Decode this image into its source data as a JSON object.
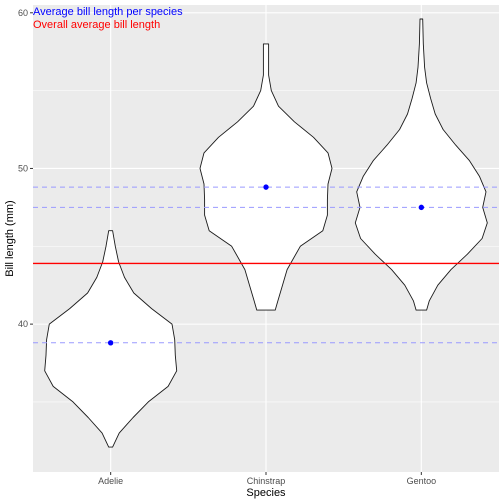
{
  "chart_data": {
    "type": "violin",
    "xlabel": "Species",
    "ylabel": "Bill length (mm)",
    "categories": [
      "Adelie",
      "Chinstrap",
      "Gentoo"
    ],
    "ylim": [
      30.5,
      60.5
    ],
    "y_ticks": [
      40,
      50,
      60
    ],
    "grid": true,
    "annotations": [
      {
        "text": "Average bill length per species",
        "color": "#0000ff"
      },
      {
        "text": "Overall average bill length",
        "color": "#ff0000"
      }
    ],
    "species_means": [
      {
        "species": "Adelie",
        "value": 38.8
      },
      {
        "species": "Chinstrap",
        "value": 48.8
      },
      {
        "species": "Gentoo",
        "value": 47.5
      }
    ],
    "overall_mean": 43.9,
    "violins": [
      {
        "species": "Adelie",
        "profile": [
          [
            32.1,
            0.03
          ],
          [
            33.0,
            0.13
          ],
          [
            34.0,
            0.34
          ],
          [
            35.0,
            0.57
          ],
          [
            36.0,
            0.87
          ],
          [
            37.0,
            1.0
          ],
          [
            38.0,
            0.98
          ],
          [
            39.0,
            0.97
          ],
          [
            40.0,
            0.93
          ],
          [
            41.0,
            0.62
          ],
          [
            42.0,
            0.35
          ],
          [
            43.0,
            0.21
          ],
          [
            44.0,
            0.12
          ],
          [
            45.0,
            0.07
          ],
          [
            46.0,
            0.03
          ]
        ]
      },
      {
        "species": "Chinstrap",
        "profile": [
          [
            40.9,
            0.14
          ],
          [
            41.5,
            0.18
          ],
          [
            42.5,
            0.25
          ],
          [
            43.5,
            0.32
          ],
          [
            45.0,
            0.52
          ],
          [
            46.0,
            0.86
          ],
          [
            47.0,
            0.93
          ],
          [
            48.0,
            0.93
          ],
          [
            49.0,
            0.94
          ],
          [
            50.0,
            1.0
          ],
          [
            51.0,
            0.94
          ],
          [
            52.0,
            0.72
          ],
          [
            53.0,
            0.43
          ],
          [
            54.0,
            0.19
          ],
          [
            55.0,
            0.08
          ],
          [
            56.0,
            0.04
          ],
          [
            58.0,
            0.04
          ]
        ]
      },
      {
        "species": "Gentoo",
        "profile": [
          [
            40.9,
            0.08
          ],
          [
            41.5,
            0.12
          ],
          [
            42.5,
            0.25
          ],
          [
            43.5,
            0.45
          ],
          [
            44.5,
            0.7
          ],
          [
            45.5,
            0.92
          ],
          [
            46.5,
            1.0
          ],
          [
            47.5,
            0.93
          ],
          [
            48.5,
            0.98
          ],
          [
            49.5,
            0.88
          ],
          [
            50.5,
            0.73
          ],
          [
            51.5,
            0.52
          ],
          [
            52.5,
            0.33
          ],
          [
            53.5,
            0.21
          ],
          [
            54.5,
            0.14
          ],
          [
            55.5,
            0.08
          ],
          [
            56.5,
            0.05
          ],
          [
            58.0,
            0.03
          ],
          [
            59.6,
            0.02
          ]
        ]
      }
    ],
    "colors": {
      "panel": "#ebebeb",
      "grid": "#ffffff",
      "violin_fill": "#ffffff",
      "violin_stroke": "#1a1a1a",
      "species_mean": "#0000ff",
      "species_mean_line": "#9a9aff",
      "overall_mean": "#ff0000",
      "axis_text": "#4d4d4d",
      "title_text": "#000000"
    }
  }
}
